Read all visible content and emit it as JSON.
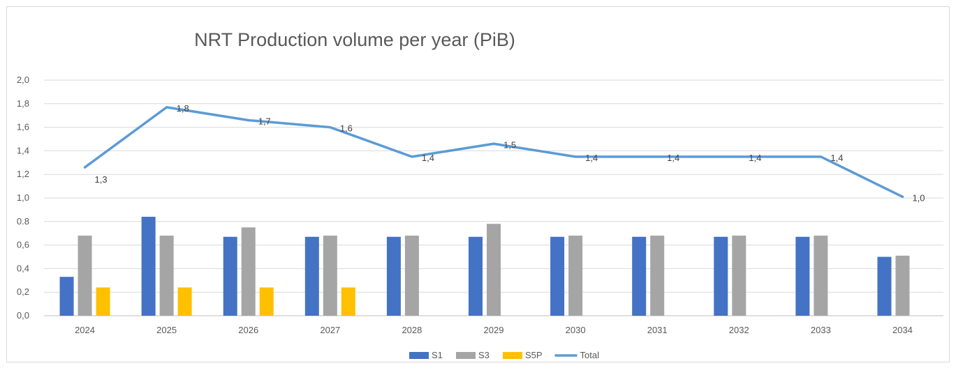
{
  "chart_data": {
    "type": "bar",
    "title": "NRT Production volume per year (PiB)",
    "xlabel": "",
    "ylabel": "",
    "categories": [
      "2024",
      "2025",
      "2026",
      "2027",
      "2028",
      "2029",
      "2030",
      "2031",
      "2032",
      "2033",
      "2034"
    ],
    "ylim": [
      0,
      2.0
    ],
    "yticks": [
      {
        "value": 0.0,
        "label": "0,0"
      },
      {
        "value": 0.2,
        "label": "0,2"
      },
      {
        "value": 0.4,
        "label": "0,4"
      },
      {
        "value": 0.6,
        "label": "0,6"
      },
      {
        "value": 0.8,
        "label": "0.8"
      },
      {
        "value": 1.0,
        "label": "1,0"
      },
      {
        "value": 1.2,
        "label": "1,2"
      },
      {
        "value": 1.4,
        "label": "1,4"
      },
      {
        "value": 1.6,
        "label": "1,6"
      },
      {
        "value": 1.8,
        "label": "1,8"
      },
      {
        "value": 2.0,
        "label": "2,0"
      }
    ],
    "grid": true,
    "legend_position": "bottom",
    "series": [
      {
        "name": "S1",
        "kind": "bar",
        "color": "#4472c4",
        "values": [
          0.33,
          0.84,
          0.67,
          0.67,
          0.67,
          0.67,
          0.67,
          0.67,
          0.67,
          0.67,
          0.5
        ]
      },
      {
        "name": "S3",
        "kind": "bar",
        "color": "#a5a5a5",
        "values": [
          0.68,
          0.68,
          0.75,
          0.68,
          0.68,
          0.78,
          0.68,
          0.68,
          0.68,
          0.68,
          0.51
        ]
      },
      {
        "name": "S5P",
        "kind": "bar",
        "color": "#ffc000",
        "values": [
          0.24,
          0.24,
          0.24,
          0.24,
          null,
          null,
          null,
          null,
          null,
          null,
          null
        ]
      },
      {
        "name": "Total",
        "kind": "line",
        "color": "#5b9bd5",
        "values": [
          1.26,
          1.77,
          1.66,
          1.6,
          1.35,
          1.46,
          1.35,
          1.35,
          1.35,
          1.35,
          1.01
        ],
        "data_labels": [
          "1,3",
          "1,8",
          "1,7",
          "1,6",
          "1,4",
          "1,5",
          "1,4",
          "1,4",
          "1,4",
          "1,4",
          "1,0"
        ]
      }
    ]
  }
}
